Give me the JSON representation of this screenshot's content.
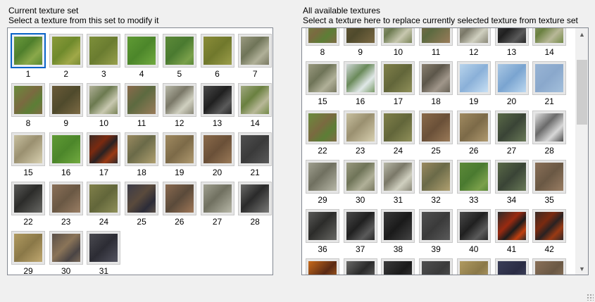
{
  "current_set": {
    "title": "Current texture set",
    "subtitle": "Select a texture from this set to modify it",
    "selected": "1",
    "items": [
      {
        "label": "1",
        "tex": "t-grass1"
      },
      {
        "label": "2",
        "tex": "t-grass2"
      },
      {
        "label": "3",
        "tex": "t-grass3"
      },
      {
        "label": "4",
        "tex": "t-grass4"
      },
      {
        "label": "5",
        "tex": "t-grass5"
      },
      {
        "label": "6",
        "tex": "t-grass6"
      },
      {
        "label": "7",
        "tex": "t-mossrock"
      },
      {
        "label": "8",
        "tex": "t-dirtgrass"
      },
      {
        "label": "9",
        "tex": "t-darkdirt"
      },
      {
        "label": "10",
        "tex": "t-rockgrass"
      },
      {
        "label": "11",
        "tex": "t-brownrock"
      },
      {
        "label": "12",
        "tex": "t-greyrock"
      },
      {
        "label": "13",
        "tex": "t-black"
      },
      {
        "label": "14",
        "tex": "t-moss"
      },
      {
        "label": "15",
        "tex": "t-paleRock"
      },
      {
        "label": "16",
        "tex": "t-grass4"
      },
      {
        "label": "17",
        "tex": "t-lava"
      },
      {
        "label": "18",
        "tex": "t-sandrock"
      },
      {
        "label": "19",
        "tex": "t-tan"
      },
      {
        "label": "20",
        "tex": "t-brown"
      },
      {
        "label": "21",
        "tex": "t-charcoal"
      },
      {
        "label": "22",
        "tex": "t-blackrock"
      },
      {
        "label": "23",
        "tex": "t-mud"
      },
      {
        "label": "24",
        "tex": "t-olive"
      },
      {
        "label": "25",
        "tex": "t-darkblue"
      },
      {
        "label": "26",
        "tex": "t-rust"
      },
      {
        "label": "27",
        "tex": "t-lightgrey"
      },
      {
        "label": "28",
        "tex": "t-blackgrey"
      },
      {
        "label": "29",
        "tex": "t-straw"
      },
      {
        "label": "30",
        "tex": "t-purpleDirt"
      },
      {
        "label": "31",
        "tex": "t-darkslate"
      }
    ]
  },
  "available": {
    "title": "All available textures",
    "subtitle": "Select a texture here to replace currently selected texture from texture set",
    "scroll_up_icon": "chevron-up-icon",
    "scroll_down_icon": "chevron-down-icon",
    "items": [
      {
        "label": "8",
        "tex": "t-dirtgrass"
      },
      {
        "label": "9",
        "tex": "t-darkdirt"
      },
      {
        "label": "10",
        "tex": "t-rockgrass"
      },
      {
        "label": "11",
        "tex": "t-brownrock"
      },
      {
        "label": "12",
        "tex": "t-greyrock"
      },
      {
        "label": "13",
        "tex": "t-black"
      },
      {
        "label": "14",
        "tex": "t-moss"
      },
      {
        "label": "15",
        "tex": "t-mossrock"
      },
      {
        "label": "16",
        "tex": "t-snowmoss"
      },
      {
        "label": "17",
        "tex": "t-olive"
      },
      {
        "label": "18",
        "tex": "t-stone"
      },
      {
        "label": "19",
        "tex": "t-ice1"
      },
      {
        "label": "20",
        "tex": "t-ice2"
      },
      {
        "label": "21",
        "tex": "t-ice3"
      },
      {
        "label": "22",
        "tex": "t-dirtgrass"
      },
      {
        "label": "23",
        "tex": "t-paleRock"
      },
      {
        "label": "24",
        "tex": "t-olive"
      },
      {
        "label": "25",
        "tex": "t-brown"
      },
      {
        "label": "26",
        "tex": "t-tan"
      },
      {
        "label": "27",
        "tex": "t-darkgreenrock"
      },
      {
        "label": "28",
        "tex": "t-snowrock"
      },
      {
        "label": "29",
        "tex": "t-lightgrey"
      },
      {
        "label": "30",
        "tex": "t-mossrock"
      },
      {
        "label": "31",
        "tex": "t-greyrock"
      },
      {
        "label": "32",
        "tex": "t-sandrock"
      },
      {
        "label": "33",
        "tex": "t-grass5"
      },
      {
        "label": "34",
        "tex": "t-darkgreenrock"
      },
      {
        "label": "35",
        "tex": "t-mud"
      },
      {
        "label": "36",
        "tex": "t-blackrock"
      },
      {
        "label": "37",
        "tex": "t-black"
      },
      {
        "label": "38",
        "tex": "t-coal"
      },
      {
        "label": "39",
        "tex": "t-charcoal"
      },
      {
        "label": "40",
        "tex": "t-black"
      },
      {
        "label": "41",
        "tex": "t-lavaRock"
      },
      {
        "label": "42",
        "tex": "t-lava"
      },
      {
        "label": "",
        "tex": "t-orangeLava"
      },
      {
        "label": "",
        "tex": "t-blackgrey"
      },
      {
        "label": "",
        "tex": "t-coal"
      },
      {
        "label": "",
        "tex": "t-charcoal"
      },
      {
        "label": "",
        "tex": "t-straw"
      },
      {
        "label": "",
        "tex": "t-navy"
      },
      {
        "label": "",
        "tex": "t-mud"
      }
    ]
  }
}
